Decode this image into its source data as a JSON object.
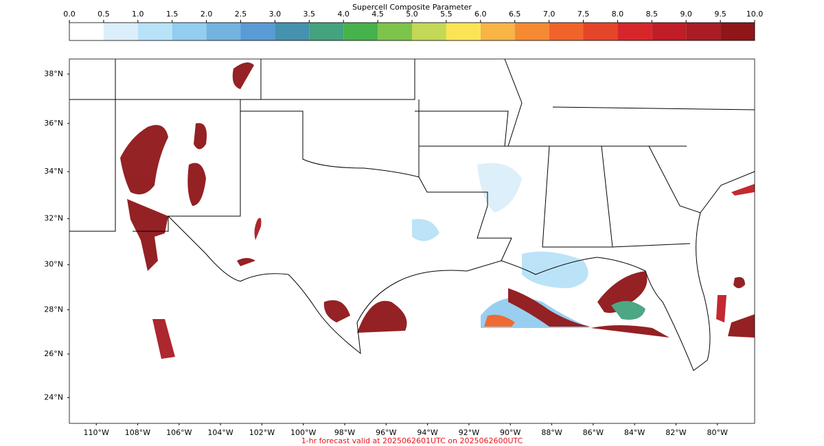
{
  "colorbar": {
    "title": "Supercell Composite Parameter",
    "ticks": [
      {
        "value": 0,
        "label": "0.0"
      },
      {
        "value": 0.5,
        "label": "0.5"
      },
      {
        "value": 1,
        "label": "1.0"
      },
      {
        "value": 1.5,
        "label": "1.5"
      },
      {
        "value": 2,
        "label": "2.0"
      },
      {
        "value": 2.5,
        "label": "2.5"
      },
      {
        "value": 3,
        "label": "3.0"
      },
      {
        "value": 3.5,
        "label": "3.5"
      },
      {
        "value": 4,
        "label": "4.0"
      },
      {
        "value": 4.5,
        "label": "4.5"
      },
      {
        "value": 5,
        "label": "5.0"
      },
      {
        "value": 5.5,
        "label": "5.5"
      },
      {
        "value": 6,
        "label": "6.0"
      },
      {
        "value": 6.5,
        "label": "6.5"
      },
      {
        "value": 7,
        "label": "7.0"
      },
      {
        "value": 7.5,
        "label": "7.5"
      },
      {
        "value": 8,
        "label": "8.0"
      },
      {
        "value": 8.5,
        "label": "8.5"
      },
      {
        "value": 9,
        "label": "9.0"
      },
      {
        "value": 9.5,
        "label": "9.5"
      },
      {
        "value": 10,
        "label": "10.0"
      }
    ],
    "colors": [
      "#ffffff",
      "#dbeffa",
      "#b8e2f7",
      "#93cdf0",
      "#72b3e0",
      "#5b9bd5",
      "#4592b0",
      "#44a27e",
      "#46b24b",
      "#7ec34a",
      "#c2d856",
      "#fbe454",
      "#f8b445",
      "#f58a33",
      "#f0632a",
      "#e54529",
      "#d7262a",
      "#c11d26",
      "#a91c24",
      "#8f1619"
    ]
  },
  "map": {
    "lon_range": [
      -111.3,
      -78.2
    ],
    "lat_range": [
      22.8,
      38.6
    ],
    "lat_ticks": [
      {
        "value": 38,
        "label": "38°N"
      },
      {
        "value": 36,
        "label": "36°N"
      },
      {
        "value": 34,
        "label": "34°N"
      },
      {
        "value": 32,
        "label": "32°N"
      },
      {
        "value": 30,
        "label": "30°N"
      },
      {
        "value": 28,
        "label": "28°N"
      },
      {
        "value": 26,
        "label": "26°N"
      },
      {
        "value": 24,
        "label": "24°N"
      }
    ],
    "lon_ticks": [
      {
        "value": -110,
        "label": "110°W"
      },
      {
        "value": -108,
        "label": "108°W"
      },
      {
        "value": -106,
        "label": "106°W"
      },
      {
        "value": -104,
        "label": "104°W"
      },
      {
        "value": -102,
        "label": "102°W"
      },
      {
        "value": -100,
        "label": "100°W"
      },
      {
        "value": -98,
        "label": "98°W"
      },
      {
        "value": -96,
        "label": "96°W"
      },
      {
        "value": -94,
        "label": "94°W"
      },
      {
        "value": -92,
        "label": "92°W"
      },
      {
        "value": -90,
        "label": "90°W"
      },
      {
        "value": -88,
        "label": "88°W"
      },
      {
        "value": -86,
        "label": "86°W"
      },
      {
        "value": -84,
        "label": "84°W"
      },
      {
        "value": -82,
        "label": "82°W"
      },
      {
        "value": -80,
        "label": "80°W"
      }
    ]
  },
  "footer": "1-hr forecast valid at 2025062601UTC on 2025062600UTC"
}
